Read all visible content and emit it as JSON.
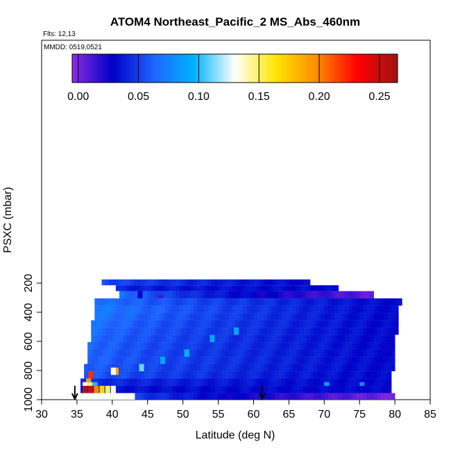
{
  "chart_data": {
    "type": "heatmap",
    "title": "ATOM4 Northeast_Pacific_2 MS_Abs_460nm",
    "subtitle_flights": "Flts: 12,13",
    "subtitle_dates": "MMDD: 0519,0521",
    "xlabel": "Latitude (deg N)",
    "ylabel": "PSXC (mbar)",
    "xlim": [
      30,
      85
    ],
    "ylim": [
      1000,
      100
    ],
    "x_ticks": [
      "30",
      "35",
      "40",
      "45",
      "50",
      "55",
      "60",
      "65",
      "70",
      "75",
      "80",
      "85"
    ],
    "y_ticks": [
      "200",
      "400",
      "600",
      "800",
      "1000"
    ],
    "colorbar": {
      "min": -0.005,
      "max": 0.265,
      "ticks": [
        "0.00",
        "0.05",
        "0.10",
        "0.15",
        "0.20",
        "0.25"
      ],
      "stops": [
        "#8a2be2",
        "#0000c8",
        "#1e64ff",
        "#00b4ff",
        "#ffffff",
        "#ffe600",
        "#ff8c00",
        "#ff0000",
        "#a01414"
      ]
    },
    "arrows_latitude": [
      34.7,
      61.2
    ],
    "bands": [
      {
        "p_top": 175,
        "p_bot": 215,
        "lat_start": 38.5,
        "lat_end": 68.0,
        "v_left": 0.055,
        "v_right": 0.03
      },
      {
        "p_top": 215,
        "p_bot": 255,
        "lat_start": 40.5,
        "lat_end": 72.0,
        "v_left": 0.04,
        "v_right": 0.03
      },
      {
        "p_top": 255,
        "p_bot": 305,
        "lat_start": 41.0,
        "lat_end": 77.0,
        "v_left": 0.07,
        "v_right": 0.005
      },
      {
        "p_top": 305,
        "p_bot": 355,
        "lat_start": 37.5,
        "lat_end": 81.0,
        "v_left": 0.07,
        "v_right": 0.03
      },
      {
        "p_top": 355,
        "p_bot": 405,
        "lat_start": 37.5,
        "lat_end": 80.5,
        "v_left": 0.075,
        "v_right": 0.03
      },
      {
        "p_top": 405,
        "p_bot": 455,
        "lat_start": 37.5,
        "lat_end": 80.5,
        "v_left": 0.072,
        "v_right": 0.03
      },
      {
        "p_top": 455,
        "p_bot": 505,
        "lat_start": 37.0,
        "lat_end": 80.5,
        "v_left": 0.07,
        "v_right": 0.03
      },
      {
        "p_top": 505,
        "p_bot": 555,
        "lat_start": 37.0,
        "lat_end": 80.5,
        "v_left": 0.068,
        "v_right": 0.03
      },
      {
        "p_top": 555,
        "p_bot": 605,
        "lat_start": 37.0,
        "lat_end": 80.0,
        "v_left": 0.066,
        "v_right": 0.03
      },
      {
        "p_top": 605,
        "p_bot": 655,
        "lat_start": 36.5,
        "lat_end": 80.0,
        "v_left": 0.065,
        "v_right": 0.03
      },
      {
        "p_top": 655,
        "p_bot": 705,
        "lat_start": 36.5,
        "lat_end": 80.0,
        "v_left": 0.064,
        "v_right": 0.03
      },
      {
        "p_top": 705,
        "p_bot": 755,
        "lat_start": 36.5,
        "lat_end": 80.0,
        "v_left": 0.064,
        "v_right": 0.03
      },
      {
        "p_top": 755,
        "p_bot": 805,
        "lat_start": 36.0,
        "lat_end": 80.0,
        "v_left": 0.062,
        "v_right": 0.03
      },
      {
        "p_top": 805,
        "p_bot": 855,
        "lat_start": 36.0,
        "lat_end": 79.5,
        "v_left": 0.06,
        "v_right": 0.03
      },
      {
        "p_top": 855,
        "p_bot": 905,
        "lat_start": 35.5,
        "lat_end": 79.5,
        "v_left": 0.045,
        "v_right": 0.03
      },
      {
        "p_top": 905,
        "p_bot": 955,
        "lat_start": 35.5,
        "lat_end": 79.5,
        "v_left": 0.035,
        "v_right": 0.03
      },
      {
        "p_top": 955,
        "p_bot": 1000,
        "lat_start": 35.0,
        "lat_end": 80.0,
        "v_left": 0.07,
        "v_right": 0.0
      }
    ],
    "highlights": [
      {
        "lat": 46.5,
        "p_top": 280,
        "p_bot": 305,
        "value": 0.012
      },
      {
        "lat": 43.6,
        "p_top": 255,
        "p_bot": 305,
        "value": 0.03
      },
      {
        "lat": 40.2,
        "p_top": 780,
        "p_bot": 830,
        "value": 0.19
      },
      {
        "lat": 39.8,
        "p_top": 780,
        "p_bot": 830,
        "value": 0.13
      },
      {
        "lat": 43.8,
        "p_top": 755,
        "p_bot": 805,
        "value": 0.11
      },
      {
        "lat": 46.8,
        "p_top": 705,
        "p_bot": 755,
        "value": 0.09
      },
      {
        "lat": 50.2,
        "p_top": 655,
        "p_bot": 705,
        "value": 0.095
      },
      {
        "lat": 53.8,
        "p_top": 555,
        "p_bot": 605,
        "value": 0.09
      },
      {
        "lat": 57.2,
        "p_top": 505,
        "p_bot": 555,
        "value": 0.09
      },
      {
        "lat": 36.6,
        "p_top": 805,
        "p_bot": 855,
        "value": 0.22
      },
      {
        "lat": 36.3,
        "p_top": 855,
        "p_bot": 880,
        "value": 0.19
      },
      {
        "lat": 35.8,
        "p_top": 880,
        "p_bot": 905,
        "value": 0.13
      },
      {
        "lat": 36.5,
        "p_top": 880,
        "p_bot": 905,
        "value": 0.15
      },
      {
        "lat": 37.2,
        "p_top": 880,
        "p_bot": 905,
        "value": 0.1
      },
      {
        "lat": 35.8,
        "p_top": 905,
        "p_bot": 955,
        "value": 0.26
      },
      {
        "lat": 36.6,
        "p_top": 905,
        "p_bot": 955,
        "value": 0.24
      },
      {
        "lat": 37.4,
        "p_top": 905,
        "p_bot": 955,
        "value": 0.2
      },
      {
        "lat": 38.2,
        "p_top": 905,
        "p_bot": 955,
        "value": 0.17
      },
      {
        "lat": 39.0,
        "p_top": 905,
        "p_bot": 955,
        "value": 0.15
      },
      {
        "lat": 39.8,
        "p_top": 905,
        "p_bot": 955,
        "value": 0.13
      },
      {
        "lat": 70.0,
        "p_top": 880,
        "p_bot": 905,
        "value": 0.09
      },
      {
        "lat": 75.0,
        "p_top": 880,
        "p_bot": 905,
        "value": 0.08
      }
    ],
    "white_region": {
      "lat_start": 35.0,
      "lat_end": 43.2,
      "p_top": 955,
      "p_bot": 1000
    }
  }
}
